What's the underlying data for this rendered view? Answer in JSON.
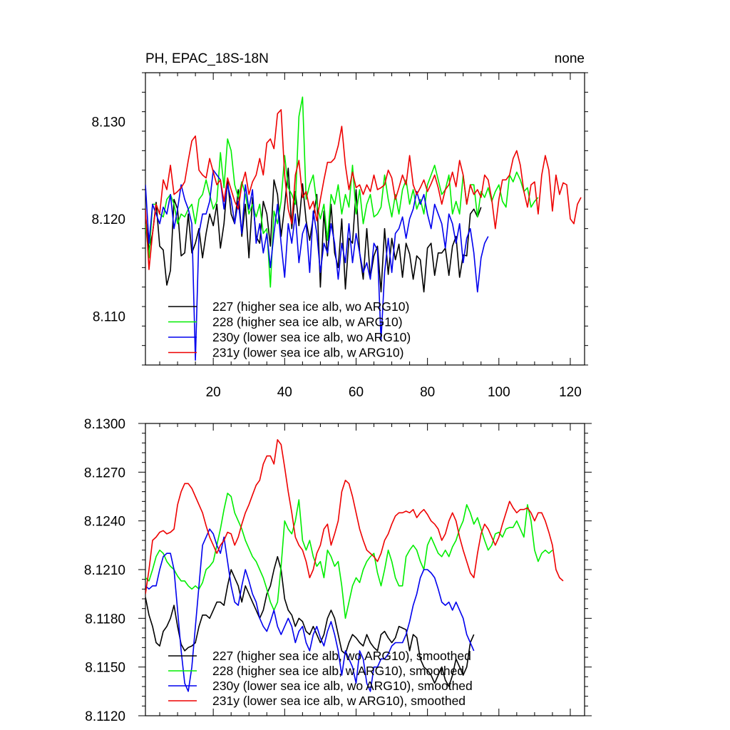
{
  "figure": {
    "title_left": "PH, EPAC_18S-18N",
    "title_right": "none"
  },
  "colors": {
    "s227": "#000000",
    "s228": "#00ee00",
    "s230y": "#0000ee",
    "s231y": "#ee0000"
  },
  "chart_data": [
    {
      "type": "line",
      "panel": "top",
      "title": "PH, EPAC_18S-18N",
      "title_right": "none",
      "xlabel": "",
      "ylabel": "",
      "xlim": [
        1,
        124
      ],
      "ylim": [
        8.105,
        8.135
      ],
      "xticks": [
        20,
        40,
        60,
        80,
        100,
        120
      ],
      "yticks": [
        8.11,
        8.12,
        8.13
      ],
      "ytick_labels": [
        "8.110",
        "8.120",
        "8.130"
      ],
      "legend_position": "bottom-left",
      "series": [
        {
          "name": "227 (higher sea ice alb, wo ARG10)",
          "color": "#000000",
          "x_start": 1,
          "values": [
            8.1205,
            8.1168,
            8.1185,
            8.1217,
            8.1172,
            8.1168,
            8.1132,
            8.1147,
            8.122,
            8.121,
            8.1162,
            8.1165,
            8.1205,
            8.1165,
            8.1175,
            8.119,
            8.116,
            8.1185,
            8.1205,
            8.1193,
            8.1215,
            8.117,
            8.1195,
            8.124,
            8.1205,
            8.1195,
            8.123,
            8.1182,
            8.1215,
            8.116,
            8.1222,
            8.1182,
            8.1175,
            8.1218,
            8.1205,
            8.1172,
            8.124,
            8.1225,
            8.1182,
            8.1213,
            8.1252,
            8.119,
            8.1228,
            8.1193,
            8.1236,
            8.1198,
            8.1178,
            8.1201,
            8.1225,
            8.113,
            8.1208,
            8.1162,
            8.1215,
            8.1165,
            8.115,
            8.12,
            8.1128,
            8.118,
            8.1175,
            8.123,
            8.1165,
            8.1138,
            8.119,
            8.114,
            8.1162,
            8.1172,
            8.1125,
            8.119,
            8.1143,
            8.118,
            8.1158,
            8.1174,
            8.114,
            8.1175,
            8.1164,
            8.1138,
            8.1162,
            8.1158,
            8.1125,
            8.117,
            8.1175,
            8.1142,
            8.1165,
            8.1165,
            8.117,
            8.1142,
            8.1172,
            8.1182,
            8.114,
            8.1163,
            8.1162,
            8.1205,
            8.121,
            8.1202,
            8.1212
          ]
        },
        {
          "name": "228 (higher sea ice alb, w ARG10)",
          "color": "#00ee00",
          "x_start": 1,
          "values": [
            8.1195,
            8.116,
            8.1215,
            8.1215,
            8.1205,
            8.1202,
            8.122,
            8.1225,
            8.1215,
            8.1195,
            8.1205,
            8.1202,
            8.121,
            8.1215,
            8.1195,
            8.122,
            8.1225,
            8.124,
            8.1225,
            8.121,
            8.1218,
            8.1268,
            8.1232,
            8.1282,
            8.127,
            8.1235,
            8.1222,
            8.1238,
            8.1225,
            8.1205,
            8.1215,
            8.1202,
            8.1215,
            8.1185,
            8.119,
            8.113,
            8.1208,
            8.1195,
            8.1218,
            8.1265,
            8.1232,
            8.1225,
            8.1215,
            8.1305,
            8.1325,
            8.122,
            8.1235,
            8.1245,
            8.1215,
            8.12,
            8.1215,
            8.1178,
            8.1225,
            8.1215,
            8.1235,
            8.1205,
            8.1225,
            8.1212,
            8.1255,
            8.1205,
            8.123,
            8.1195,
            8.1215,
            8.1225,
            8.1202,
            8.1205,
            8.1212,
            8.1245,
            8.122,
            8.1202,
            8.1225,
            8.1205,
            8.123,
            8.124,
            8.1215,
            8.123,
            8.121,
            8.122,
            8.1205,
            8.1235,
            8.1245,
            8.1255,
            8.124,
            8.1225,
            8.123,
            8.1245,
            8.1205,
            8.1218,
            8.1205,
            8.1245,
            8.1215,
            8.1235,
            8.1235,
            8.1202,
            8.1228,
            8.1222,
            8.1232,
            8.1218,
            8.1228,
            8.1235,
            8.1218,
            8.1212,
            8.1245,
            8.1238,
            8.1248,
            8.124,
            8.1228,
            8.1232,
            8.1212,
            8.1218,
            8.1222
          ]
        },
        {
          "name": "230y (lower sea ice alb, wo ARG10)",
          "color": "#0000ee",
          "x_start": 1,
          "values": [
            8.1235,
            8.1175,
            8.1215,
            8.1205,
            8.1195,
            8.1212,
            8.1205,
            8.1225,
            8.119,
            8.121,
            8.1235,
            8.122,
            8.121,
            8.1195,
            8.1055,
            8.1185,
            8.1205,
            8.1205,
            8.1218,
            8.125,
            8.1245,
            8.124,
            8.121,
            8.1235,
            8.122,
            8.1195,
            8.1218,
            8.1185,
            8.1235,
            8.121,
            8.123,
            8.1175,
            8.1195,
            8.1165,
            8.1185,
            8.115,
            8.1185,
            8.1215,
            8.1175,
            8.114,
            8.1195,
            8.1175,
            8.1205,
            8.1155,
            8.1185,
            8.1195,
            8.1145,
            8.1208,
            8.1185,
            8.1145,
            8.1175,
            8.1165,
            8.1195,
            8.1175,
            8.1138,
            8.1175,
            8.1155,
            8.1195,
            8.1155,
            8.1185,
            8.1165,
            8.1145,
            8.1155,
            8.1138,
            8.1175,
            8.1168,
            8.1075,
            8.1145,
            8.118,
            8.1145,
            8.1185,
            8.119,
            8.1202,
            8.118,
            8.12,
            8.121,
            8.1228,
            8.1215,
            8.1225,
            8.1205,
            8.119,
            8.1215,
            8.1205,
            8.1195,
            8.117,
            8.1205,
            8.1195,
            8.1175,
            8.1195,
            8.1155,
            8.118,
            8.119,
            8.1165,
            8.1125,
            8.116,
            8.1175,
            8.1182
          ]
        },
        {
          "name": "231y (lower sea ice alb, w ARG10)",
          "color": "#ee0000",
          "x_start": 1,
          "values": [
            8.121,
            8.1148,
            8.1185,
            8.1215,
            8.1205,
            8.124,
            8.123,
            8.1255,
            8.1225,
            8.1228,
            8.1232,
            8.1238,
            8.126,
            8.128,
            8.1285,
            8.125,
            8.1245,
            8.1242,
            8.1262,
            8.1248,
            8.1235,
            8.124,
            8.1218,
            8.1242,
            8.123,
            8.1218,
            8.121,
            8.1235,
            8.1248,
            8.1225,
            8.1238,
            8.1245,
            8.1262,
            8.1245,
            8.1278,
            8.1282,
            8.1272,
            8.1308,
            8.1312,
            8.1245,
            8.121,
            8.1195,
            8.1245,
            8.126,
            8.1222,
            8.1228,
            8.121,
            8.1218,
            8.1198,
            8.122,
            8.124,
            8.1258,
            8.1258,
            8.1262,
            8.1275,
            8.1295,
            8.1255,
            8.123,
            8.1248,
            8.1232,
            8.1235,
            8.1225,
            8.1235,
            8.1228,
            8.1245,
            8.123,
            8.1232,
            8.1235,
            8.125,
            8.1242,
            8.122,
            8.1232,
            8.1245,
            8.1235,
            8.1265,
            8.1235,
            8.1225,
            8.1232,
            8.124,
            8.1228,
            8.1236,
            8.1245,
            8.1232,
            8.1215,
            8.123,
            8.1235,
            8.1248,
            8.1233,
            8.126,
            8.1245,
            8.1215,
            8.1235,
            8.1225,
            8.123,
            8.1222,
            8.1245,
            8.124,
            8.122,
            8.119,
            8.122,
            8.124,
            8.124,
            8.1245,
            8.1262,
            8.127,
            8.1255,
            8.1228,
            8.1212,
            8.1235,
            8.1238,
            8.1205,
            8.1245,
            8.1265,
            8.125,
            8.1208,
            8.1245,
            8.1225,
            8.1237,
            8.1235,
            8.12,
            8.1195,
            8.1215,
            8.1222
          ]
        }
      ]
    },
    {
      "type": "line",
      "panel": "bottom",
      "title": "",
      "xlabel": "",
      "ylabel": "",
      "xlim": [
        1,
        124
      ],
      "ylim": [
        8.112,
        8.13
      ],
      "xticks": [
        20,
        40,
        60,
        80,
        100,
        120
      ],
      "yticks": [
        8.112,
        8.115,
        8.118,
        8.121,
        8.124,
        8.127,
        8.13
      ],
      "ytick_labels": [
        "8.1120",
        "8.1150",
        "8.1180",
        "8.1210",
        "8.1240",
        "8.1270",
        "8.1300"
      ],
      "legend_position": "bottom-left",
      "series": [
        {
          "name": "227 (higher sea ice alb, wo ARG10), smoothed",
          "color": "#000000",
          "x_start": 1,
          "values": [
            8.1193,
            8.1182,
            8.1175,
            8.1165,
            8.1163,
            8.1172,
            8.1175,
            8.118,
            8.1188,
            8.1175,
            8.1164,
            8.116,
            8.1162,
            8.1163,
            8.1165,
            8.1175,
            8.1182,
            8.1182,
            8.118,
            8.1185,
            8.119,
            8.119,
            8.1188,
            8.12,
            8.121,
            8.1205,
            8.12,
            8.119,
            8.12,
            8.1195,
            8.119,
            8.1185,
            8.118,
            8.1185,
            8.1195,
            8.12,
            8.121,
            8.1218,
            8.121,
            8.1192,
            8.1185,
            8.1182,
            8.1175,
            8.118,
            8.1178,
            8.1172,
            8.117,
            8.1175,
            8.117,
            8.1165,
            8.117,
            8.118,
            8.1185,
            8.118,
            8.117,
            8.116,
            8.1158,
            8.1165,
            8.117,
            8.1168,
            8.1165,
            8.1163,
            8.117,
            8.1165,
            8.1162,
            8.116,
            8.117,
            8.1172,
            8.1168,
            8.1165,
            8.1168,
            8.1175,
            8.1174,
            8.1173,
            8.116,
            8.117,
            8.1168,
            8.1155,
            8.115,
            8.1148,
            8.1145,
            8.114,
            8.1145,
            8.115,
            8.1142,
            8.1138,
            8.1145,
            8.1155,
            8.115,
            8.1145,
            8.115,
            8.1165,
            8.117
          ]
        },
        {
          "name": "228 (higher sea ice alb, w ARG10), smoothed",
          "color": "#00ee00",
          "x_start": 1,
          "values": [
            8.1205,
            8.1203,
            8.121,
            8.1218,
            8.1222,
            8.122,
            8.1215,
            8.1212,
            8.121,
            8.1206,
            8.1203,
            8.1203,
            8.12,
            8.1198,
            8.12,
            8.1198,
            8.1202,
            8.121,
            8.1212,
            8.1215,
            8.1225,
            8.1235,
            8.1247,
            8.1257,
            8.1255,
            8.1245,
            8.124,
            8.1235,
            8.1228,
            8.1223,
            8.1218,
            8.1215,
            8.121,
            8.1205,
            8.1198,
            8.119,
            8.1185,
            8.119,
            8.1212,
            8.124,
            8.1235,
            8.1232,
            8.124,
            8.1253,
            8.1228,
            8.1222,
            8.1228,
            8.1218,
            8.1212,
            8.1215,
            8.1205,
            8.1222,
            8.1218,
            8.1212,
            8.1215,
            8.12,
            8.118,
            8.119,
            8.12,
            8.1205,
            8.1202,
            8.121,
            8.1215,
            8.1218,
            8.122,
            8.1208,
            8.12,
            8.121,
            8.1222,
            8.1215,
            8.1205,
            8.12,
            8.12,
            8.1218,
            8.1222,
            8.1225,
            8.1222,
            8.1215,
            8.121,
            8.1225,
            8.123,
            8.1225,
            8.122,
            8.1218,
            8.1222,
            8.1218,
            8.1224,
            8.1228,
            8.1235,
            8.124,
            8.125,
            8.1245,
            8.1238,
            8.1242,
            8.1235,
            8.1228,
            8.1222,
            8.1225,
            8.1232,
            8.1233,
            8.123,
            8.1235,
            8.1236,
            8.1236,
            8.124,
            8.1235,
            8.123,
            8.125,
            8.124,
            8.1222,
            8.1215,
            8.122,
            8.1222,
            8.122,
            8.1222
          ]
        },
        {
          "name": "230y (lower sea ice alb, wo ARG10), smoothed",
          "color": "#0000ee",
          "x_start": 1,
          "values": [
            8.12,
            8.1198,
            8.12,
            8.12,
            8.121,
            8.1218,
            8.122,
            8.122,
            8.121,
            8.1185,
            8.116,
            8.114,
            8.1135,
            8.115,
            8.1175,
            8.12,
            8.1225,
            8.123,
            8.1235,
            8.1232,
            8.1225,
            8.122,
            8.123,
            8.1215,
            8.12,
            8.119,
            8.1188,
            8.12,
            8.121,
            8.1203,
            8.1195,
            8.119,
            8.118,
            8.1175,
            8.1172,
            8.1178,
            8.1185,
            8.1175,
            8.117,
            8.1175,
            8.118,
            8.1175,
            8.1165,
            8.1172,
            8.1175,
            8.1165,
            8.116,
            8.117,
            8.1175,
            8.1168,
            8.1163,
            8.1172,
            8.1178,
            8.117,
            8.116,
            8.1145,
            8.116,
            8.1155,
            8.115,
            8.114,
            8.116,
            8.1155,
            8.114,
            8.1135,
            8.115,
            8.115,
            8.1155,
            8.1155,
            8.1158,
            8.1163,
            8.1165,
            8.1165,
            8.1165,
            8.117,
            8.1178,
            8.1188,
            8.1195,
            8.1205,
            8.121,
            8.121,
            8.1208,
            8.1205,
            8.1198,
            8.119,
            8.1188,
            8.119,
            8.1185,
            8.119,
            8.1185,
            8.118,
            8.117,
            8.1165,
            8.116
          ]
        },
        {
          "name": "231y (lower sea ice alb, w ARG10), smoothed",
          "color": "#ee0000",
          "x_start": 1,
          "values": [
            8.1195,
            8.121,
            8.1228,
            8.123,
            8.1233,
            8.1234,
            8.1232,
            8.1233,
            8.1235,
            8.125,
            8.1258,
            8.1263,
            8.1263,
            8.126,
            8.1255,
            8.125,
            8.1245,
            8.1237,
            8.123,
            8.1225,
            8.122,
            8.1225,
            8.1228,
            8.1233,
            8.1232,
            8.1225,
            8.123,
            8.1238,
            8.1245,
            8.125,
            8.1256,
            8.1262,
            8.1265,
            8.1275,
            8.128,
            8.128,
            8.1275,
            8.129,
            8.1287,
            8.1273,
            8.1258,
            8.1245,
            8.123,
            8.1225,
            8.1222,
            8.1215,
            8.1205,
            8.121,
            8.122,
            8.1225,
            8.1235,
            8.1238,
            8.1225,
            8.1232,
            8.124,
            8.1258,
            8.1265,
            8.1263,
            8.1255,
            8.1245,
            8.1235,
            8.1228,
            8.1222,
            8.122,
            8.1218,
            8.1215,
            8.122,
            8.1228,
            8.1232,
            8.1238,
            8.1243,
            8.1245,
            8.1245,
            8.1246,
            8.1245,
            8.1247,
            8.1242,
            8.1245,
            8.1247,
            8.1244,
            8.124,
            8.1238,
            8.1235,
            8.1228,
            8.1232,
            8.124,
            8.1245,
            8.124,
            8.123,
            8.1222,
            8.1215,
            8.1208,
            8.1205,
            8.122,
            8.1232,
            8.1238,
            8.1235,
            8.123,
            8.1225,
            8.123,
            8.1238,
            8.1245,
            8.1252,
            8.1248,
            8.1245,
            8.1247,
            8.1247,
            8.1248,
            8.1245,
            8.124,
            8.1245,
            8.1245,
            8.124,
            8.1233,
            8.1225,
            8.121,
            8.1205,
            8.1203
          ]
        }
      ]
    }
  ]
}
